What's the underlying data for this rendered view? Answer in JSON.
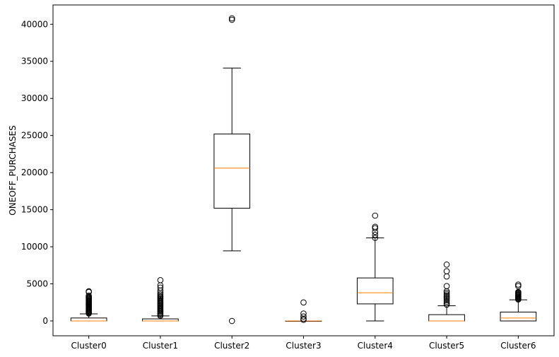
{
  "chart_data": {
    "type": "boxplot",
    "title": "",
    "xlabel": "",
    "ylabel": "ONEOFF_PURCHASES",
    "ylim": [
      -2000,
      42600
    ],
    "yticks": [
      0,
      5000,
      10000,
      15000,
      20000,
      25000,
      30000,
      35000,
      40000
    ],
    "grid": false,
    "colors": {
      "box": "#000000",
      "median": "#ff7f0e",
      "whisker": "#000000",
      "flier": "#000000"
    },
    "categories": [
      "Cluster0",
      "Cluster1",
      "Cluster2",
      "Cluster3",
      "Cluster4",
      "Cluster5",
      "Cluster6"
    ],
    "boxes": [
      {
        "label": "Cluster0",
        "whislo": 0,
        "q1": 0,
        "med": 0,
        "q3": 400,
        "whishi": 950,
        "fliers": [
          1000,
          1100,
          1200,
          1300,
          1400,
          1500,
          1600,
          1700,
          1800,
          1900,
          2000,
          2100,
          2200,
          2300,
          2400,
          2500,
          2600,
          2700,
          2800,
          2900,
          3000,
          3100,
          3200,
          3400,
          3900,
          4000
        ]
      },
      {
        "label": "Cluster1",
        "whislo": 0,
        "q1": 0,
        "med": 0,
        "q3": 280,
        "whishi": 680,
        "fliers": [
          700,
          850,
          1000,
          1150,
          1300,
          1450,
          1600,
          1750,
          1900,
          2050,
          2200,
          2350,
          2500,
          2650,
          2800,
          2950,
          3100,
          3250,
          3400,
          3600,
          3800,
          4100,
          4500,
          4800,
          5500
        ]
      },
      {
        "label": "Cluster2",
        "whislo": 9450,
        "q1": 15200,
        "med": 20600,
        "q3": 25200,
        "whishi": 34100,
        "fliers": [
          0,
          40600,
          40800
        ]
      },
      {
        "label": "Cluster3",
        "whislo": 0,
        "q1": 0,
        "med": 0,
        "q3": 0,
        "whishi": 0,
        "fliers": [
          150,
          300,
          600,
          1000,
          2500
        ]
      },
      {
        "label": "Cluster4",
        "whislo": 0,
        "q1": 2300,
        "med": 3800,
        "q3": 5800,
        "whishi": 11200,
        "fliers": [
          11200,
          11600,
          12000,
          12500,
          12700,
          14200
        ]
      },
      {
        "label": "Cluster5",
        "whislo": 0,
        "q1": 0,
        "med": 0,
        "q3": 850,
        "whishi": 2050,
        "fliers": [
          2200,
          2400,
          2600,
          2800,
          3000,
          3200,
          3400,
          3600,
          3800,
          4000,
          4700,
          6000,
          6700,
          7600
        ]
      },
      {
        "label": "Cluster6",
        "whislo": 0,
        "q1": 0,
        "med": 400,
        "q3": 1200,
        "whishi": 2850,
        "fliers": [
          2900,
          3000,
          3100,
          3200,
          3300,
          3400,
          3500,
          3600,
          3700,
          3800,
          3900,
          4700,
          4900
        ]
      }
    ]
  }
}
